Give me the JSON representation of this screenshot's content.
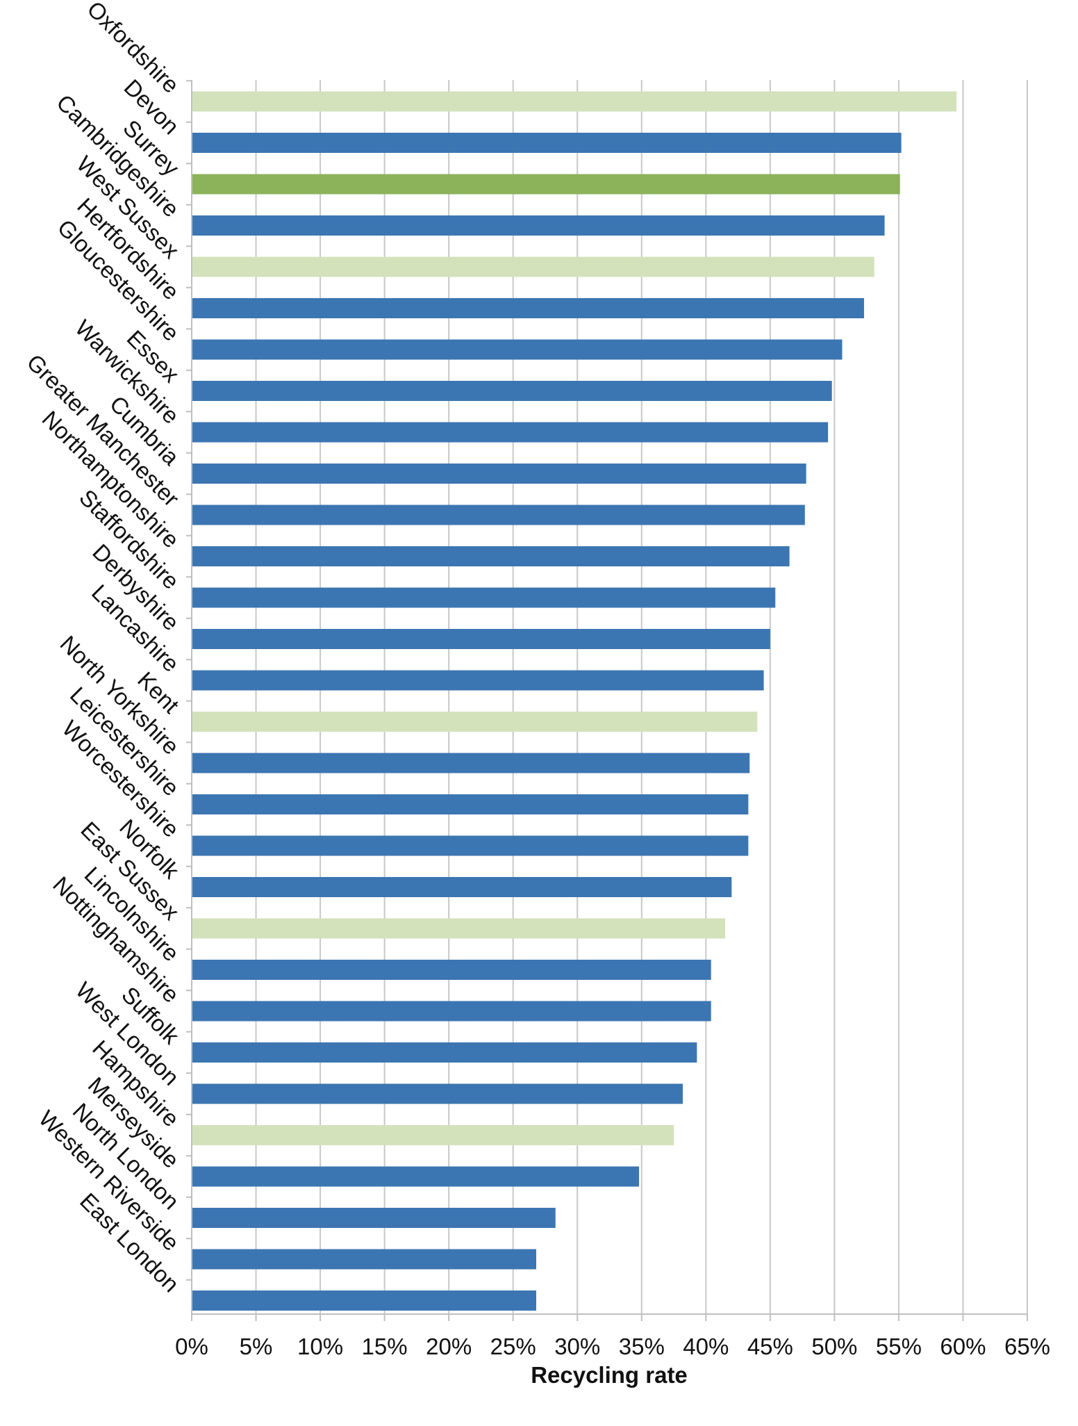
{
  "chart_data": {
    "type": "bar",
    "orientation": "horizontal",
    "title": "",
    "xlabel": "Recycling rate",
    "ylabel": "",
    "xlim": [
      0,
      65
    ],
    "x_tick_step": 5,
    "x_tick_labels": [
      "0%",
      "5%",
      "10%",
      "15%",
      "20%",
      "25%",
      "30%",
      "35%",
      "40%",
      "45%",
      "50%",
      "55%",
      "60%",
      "65%"
    ],
    "grid": "vertical",
    "legend": "none",
    "categories": [
      "Oxfordshire",
      "Devon",
      "Surrey",
      "Cambridgeshire",
      "West Sussex",
      "Hertfordshire",
      "Gloucestershire",
      "Essex",
      "Warwickshire",
      "Cumbria",
      "Greater Manchester",
      "Northamptonshire",
      "Staffordshire",
      "Derbyshire",
      "Lancashire",
      "Kent",
      "North Yorkshire",
      "Leicestershire",
      "Worcestershire",
      "Norfolk",
      "East Sussex",
      "Lincolnshire",
      "Nottinghamshire",
      "Suffolk",
      "West London",
      "Hampshire",
      "Merseyside",
      "North London",
      "Western Riverside",
      "East London"
    ],
    "values": [
      59.5,
      55.2,
      55.1,
      53.9,
      53.1,
      52.3,
      50.6,
      49.8,
      49.5,
      47.8,
      47.7,
      46.5,
      45.4,
      45.0,
      44.5,
      44.0,
      43.4,
      43.3,
      43.3,
      42.0,
      41.5,
      40.4,
      40.4,
      39.3,
      38.2,
      37.5,
      34.8,
      28.3,
      26.8,
      26.8
    ],
    "bar_colors": [
      "#d3e2bb",
      "#3c76b2",
      "#8db35a",
      "#3c76b2",
      "#d3e2bb",
      "#3c76b2",
      "#3c76b2",
      "#3c76b2",
      "#3c76b2",
      "#3c76b2",
      "#3c76b2",
      "#3c76b2",
      "#3c76b2",
      "#3c76b2",
      "#3c76b2",
      "#d3e2bb",
      "#3c76b2",
      "#3c76b2",
      "#3c76b2",
      "#3c76b2",
      "#d3e2bb",
      "#3c76b2",
      "#3c76b2",
      "#3c76b2",
      "#3c76b2",
      "#d3e2bb",
      "#3c76b2",
      "#3c76b2",
      "#3c76b2",
      "#3c76b2"
    ],
    "colors": {
      "primary": "#3c76b2",
      "highlight": "#8db35a",
      "light": "#d3e2bb",
      "grid": "#c8c8c8",
      "axis": "#bfbfbf"
    }
  }
}
